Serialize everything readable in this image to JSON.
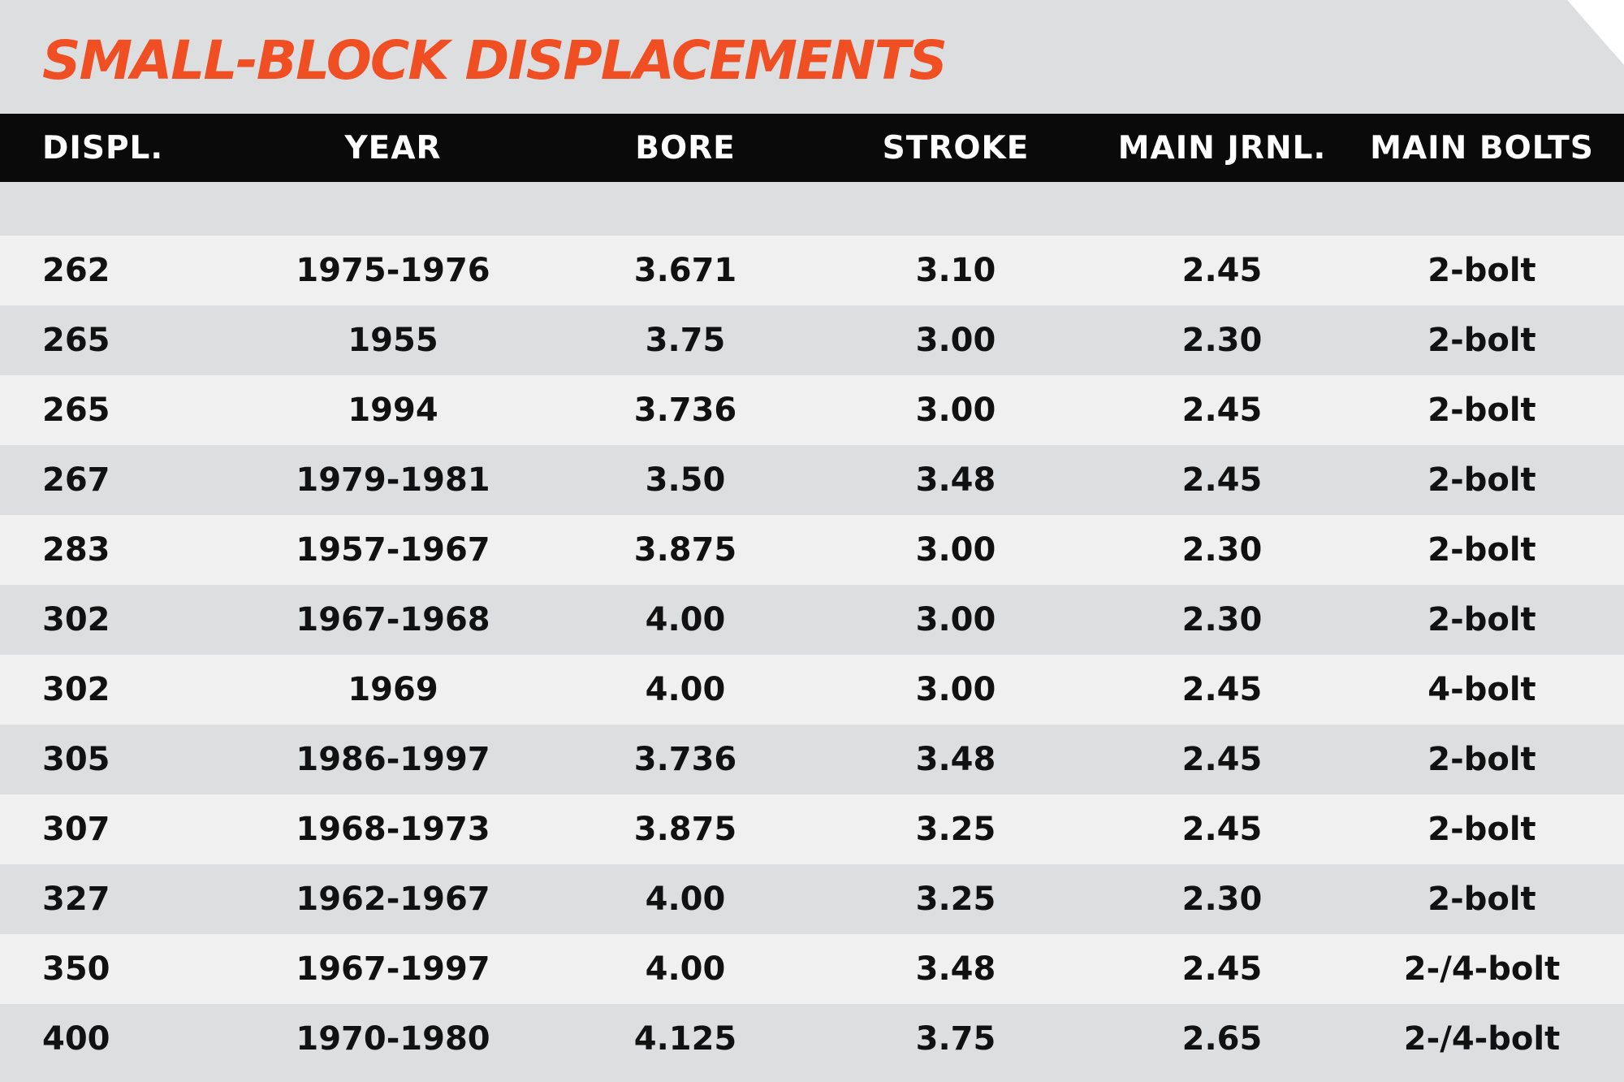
{
  "title": "SMALL-BLOCK DISPLACEMENTS",
  "colors": {
    "accent": "#f04e23",
    "header_bg": "#0a0a0a",
    "row_light": "#f0f0f1",
    "row_dark": "#dddee0"
  },
  "columns": [
    "DISPL.",
    "YEAR",
    "BORE",
    "STROKE",
    "MAIN JRNL.",
    "MAIN BOLTS"
  ],
  "rows": [
    [
      "262",
      "1975-1976",
      "3.671",
      "3.10",
      "2.45",
      "2-bolt"
    ],
    [
      "265",
      "1955",
      "3.75",
      "3.00",
      "2.30",
      "2-bolt"
    ],
    [
      "265",
      "1994",
      "3.736",
      "3.00",
      "2.45",
      "2-bolt"
    ],
    [
      "267",
      "1979-1981",
      "3.50",
      "3.48",
      "2.45",
      "2-bolt"
    ],
    [
      "283",
      "1957-1967",
      "3.875",
      "3.00",
      "2.30",
      "2-bolt"
    ],
    [
      "302",
      "1967-1968",
      "4.00",
      "3.00",
      "2.30",
      "2-bolt"
    ],
    [
      "302",
      "1969",
      "4.00",
      "3.00",
      "2.45",
      "4-bolt"
    ],
    [
      "305",
      "1986-1997",
      "3.736",
      "3.48",
      "2.45",
      "2-bolt"
    ],
    [
      "307",
      "1968-1973",
      "3.875",
      "3.25",
      "2.45",
      "2-bolt"
    ],
    [
      "327",
      "1962-1967",
      "4.00",
      "3.25",
      "2.30",
      "2-bolt"
    ],
    [
      "350",
      "1967-1997",
      "4.00",
      "3.48",
      "2.45",
      "2-/4-bolt"
    ],
    [
      "400",
      "1970-1980",
      "4.125",
      "3.75",
      "2.65",
      "2-/4-bolt"
    ]
  ]
}
